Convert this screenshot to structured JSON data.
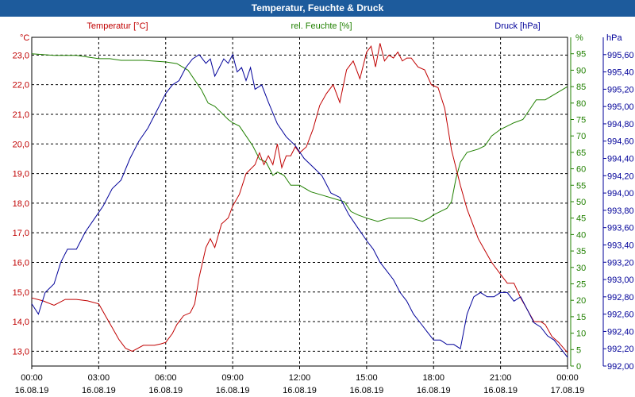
{
  "window": {
    "title": "Temperatur, Feuchte & Druck"
  },
  "chart_data": {
    "type": "line",
    "title": "Temperatur, Feuchte & Druck",
    "x_labels": [
      {
        "time": "00:00",
        "date": "16.08.19"
      },
      {
        "time": "03:00",
        "date": "16.08.19"
      },
      {
        "time": "06:00",
        "date": "16.08.19"
      },
      {
        "time": "09:00",
        "date": "16.08.19"
      },
      {
        "time": "12:00",
        "date": "16.08.19"
      },
      {
        "time": "15:00",
        "date": "16.08.19"
      },
      {
        "time": "18:00",
        "date": "16.08.19"
      },
      {
        "time": "21:00",
        "date": "16.08.19"
      },
      {
        "time": "00:00",
        "date": "17.08.19"
      }
    ],
    "xlim": [
      0,
      24
    ],
    "grid": true,
    "axes": {
      "temp": {
        "unit": "°C",
        "title": "Temperatur [°C]",
        "ylim": [
          12.5,
          23.6
        ],
        "ticks": [
          "13,0",
          "14,0",
          "15,0",
          "16,0",
          "17,0",
          "18,0",
          "19,0",
          "20,0",
          "21,0",
          "22,0",
          "23,0"
        ],
        "tick_values": [
          13,
          14,
          15,
          16,
          17,
          18,
          19,
          20,
          21,
          22,
          23
        ],
        "color": "#c00000"
      },
      "hum": {
        "unit": "%",
        "title": "rel. Feuchte [%]",
        "ylim": [
          0,
          100
        ],
        "ticks": [
          "0",
          "5",
          "10",
          "15",
          "20",
          "25",
          "30",
          "35",
          "40",
          "45",
          "50",
          "55",
          "60",
          "65",
          "70",
          "75",
          "80",
          "85",
          "90",
          "95"
        ],
        "tick_values": [
          0,
          5,
          10,
          15,
          20,
          25,
          30,
          35,
          40,
          45,
          50,
          55,
          60,
          65,
          70,
          75,
          80,
          85,
          90,
          95
        ],
        "color": "#208000"
      },
      "pres": {
        "unit": "hPa",
        "title": "Druck [hPa]",
        "ylim": [
          992.0,
          995.8
        ],
        "ticks": [
          "992,00",
          "992,20",
          "992,40",
          "992,60",
          "992,80",
          "993,00",
          "993,20",
          "993,40",
          "993,60",
          "993,80",
          "994,00",
          "994,20",
          "994,40",
          "994,60",
          "994,80",
          "995,00",
          "995,20",
          "995,40",
          "995,60"
        ],
        "tick_values": [
          992.0,
          992.2,
          992.4,
          992.6,
          992.8,
          993.0,
          993.2,
          993.4,
          993.6,
          993.8,
          994.0,
          994.2,
          994.4,
          994.6,
          994.8,
          995.0,
          995.2,
          995.4,
          995.6
        ],
        "color": "#000099"
      }
    },
    "series": [
      {
        "name": "Temperatur [°C]",
        "axis": "temp",
        "color": "#c00000",
        "x": [
          0,
          0.5,
          1,
          1.5,
          2,
          2.5,
          3,
          3.3,
          3.6,
          3.9,
          4.2,
          4.5,
          5,
          5.5,
          5.8,
          6,
          6.3,
          6.5,
          6.8,
          7.1,
          7.3,
          7.5,
          7.8,
          8,
          8.2,
          8.5,
          8.8,
          9,
          9.3,
          9.6,
          10,
          10.2,
          10.4,
          10.6,
          10.8,
          11,
          11.2,
          11.4,
          11.6,
          11.8,
          12,
          12.3,
          12.6,
          12.9,
          13.2,
          13.5,
          13.8,
          14.1,
          14.4,
          14.7,
          15,
          15.2,
          15.4,
          15.6,
          15.8,
          16,
          16.2,
          16.4,
          16.6,
          16.8,
          17,
          17.3,
          17.6,
          17.9,
          18.2,
          18.5,
          18.8,
          19,
          19.2,
          19.5,
          19.8,
          20,
          20.3,
          20.6,
          21,
          21.3,
          21.6,
          21.9,
          22.2,
          22.5,
          22.8,
          23,
          23.3,
          23.6,
          24
        ],
        "values": [
          14.8,
          14.7,
          14.55,
          14.75,
          14.75,
          14.7,
          14.6,
          14.2,
          13.8,
          13.4,
          13.1,
          13.0,
          13.2,
          13.2,
          13.25,
          13.3,
          13.6,
          13.9,
          14.2,
          14.3,
          14.6,
          15.5,
          16.5,
          16.8,
          16.5,
          17.3,
          17.5,
          17.9,
          18.3,
          19.0,
          19.3,
          19.7,
          19.3,
          19.6,
          19.3,
          20.0,
          19.2,
          19.6,
          19.6,
          19.9,
          19.7,
          19.9,
          20.5,
          21.3,
          21.7,
          22.0,
          21.4,
          22.5,
          22.8,
          22.2,
          23.1,
          23.3,
          22.6,
          23.4,
          22.8,
          23.0,
          22.9,
          23.1,
          22.8,
          22.9,
          22.9,
          22.6,
          22.5,
          22.0,
          21.9,
          21.2,
          19.8,
          19.2,
          18.6,
          17.8,
          17.2,
          16.8,
          16.4,
          16.0,
          15.6,
          15.3,
          15.3,
          14.8,
          14.4,
          14.0,
          14.0,
          13.9,
          13.5,
          13.3,
          12.95
        ]
      },
      {
        "name": "rel. Feuchte [%]",
        "axis": "hum",
        "color": "#208000",
        "x": [
          0,
          1,
          2,
          3,
          3.5,
          4,
          5,
          6,
          6.5,
          7,
          7.3,
          7.6,
          7.9,
          8.2,
          8.5,
          8.8,
          9,
          9.3,
          9.6,
          9.9,
          10.2,
          10.5,
          10.8,
          11,
          11.3,
          11.6,
          12,
          12.5,
          13,
          13.5,
          14,
          14.3,
          14.6,
          15,
          15.5,
          16,
          16.5,
          17,
          17.5,
          17.8,
          18,
          18.3,
          18.6,
          18.8,
          19,
          19.2,
          19.5,
          20,
          20.3,
          20.6,
          21,
          21.3,
          21.6,
          22,
          22.3,
          22.6,
          23,
          23.5,
          24
        ],
        "values": [
          95,
          94.5,
          94.5,
          93.5,
          93.5,
          93,
          93,
          92.5,
          92,
          90,
          87,
          84,
          80,
          79,
          77,
          75,
          74,
          73,
          70,
          67,
          63,
          62,
          58,
          59,
          58,
          55,
          55,
          53,
          52,
          51,
          50,
          47,
          46,
          45,
          44,
          45,
          45,
          45,
          44,
          45,
          46,
          47,
          48,
          50,
          57,
          62,
          65,
          66,
          67,
          70,
          72,
          73,
          74,
          75,
          78,
          81,
          81,
          83,
          85
        ]
      },
      {
        "name": "Druck [hPa]",
        "axis": "pres",
        "color": "#000099",
        "x": [
          0,
          0.3,
          0.6,
          1,
          1.3,
          1.6,
          2,
          2.4,
          2.8,
          3.2,
          3.6,
          4,
          4.4,
          4.8,
          5.2,
          5.6,
          6,
          6.3,
          6.6,
          6.9,
          7.2,
          7.5,
          7.8,
          8,
          8.2,
          8.4,
          8.6,
          8.8,
          9,
          9.2,
          9.4,
          9.6,
          9.8,
          10,
          10.3,
          10.6,
          11,
          11.4,
          11.8,
          12.2,
          12.6,
          13,
          13.4,
          13.8,
          14.2,
          14.6,
          15,
          15.3,
          15.6,
          15.9,
          16.2,
          16.5,
          16.8,
          17.1,
          17.4,
          17.7,
          18,
          18.3,
          18.6,
          18.9,
          19.2,
          19.5,
          19.8,
          20.1,
          20.4,
          20.7,
          21,
          21.3,
          21.6,
          21.9,
          22.2,
          22.5,
          22.8,
          23.1,
          23.4,
          23.7,
          24
        ],
        "values": [
          992.72,
          992.6,
          992.85,
          992.95,
          993.2,
          993.35,
          993.35,
          993.55,
          993.7,
          993.85,
          994.05,
          994.15,
          994.4,
          994.6,
          994.75,
          994.95,
          995.15,
          995.25,
          995.3,
          995.45,
          995.55,
          995.6,
          995.5,
          995.55,
          995.35,
          995.45,
          995.55,
          995.5,
          995.6,
          995.4,
          995.45,
          995.3,
          995.45,
          995.2,
          995.25,
          995.05,
          994.8,
          994.65,
          994.55,
          994.4,
          994.3,
          994.2,
          994.0,
          993.95,
          993.75,
          993.6,
          993.45,
          993.35,
          993.2,
          993.1,
          993.0,
          992.85,
          992.75,
          992.6,
          992.5,
          992.4,
          992.3,
          992.3,
          992.25,
          992.25,
          992.2,
          992.6,
          992.8,
          992.85,
          992.8,
          992.8,
          992.85,
          992.85,
          992.75,
          992.8,
          992.65,
          992.5,
          992.45,
          992.35,
          992.3,
          992.2,
          992.1
        ]
      }
    ]
  }
}
